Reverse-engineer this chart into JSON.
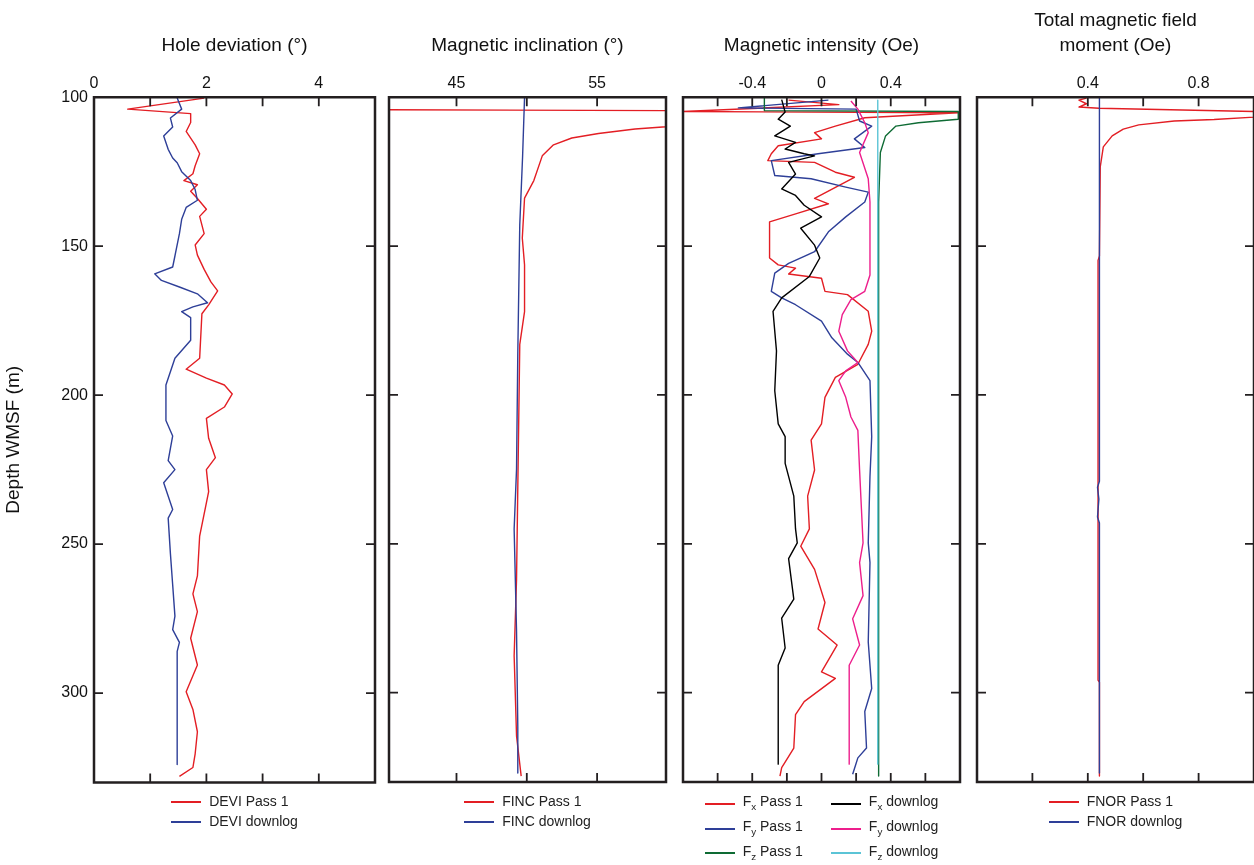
{
  "chart_data": [
    {
      "type": "line",
      "title": "Hole deviation (°)",
      "ylabel": "Depth WMSF (m)",
      "xlim": [
        0,
        5
      ],
      "xticks": [
        0,
        {
          "value": 1,
          "label": null
        },
        2,
        {
          "value": 3,
          "label": null
        },
        4
      ],
      "ylim": [
        330,
        100
      ],
      "yticks": [
        100,
        150,
        200,
        250,
        300
      ],
      "legend": "bottom",
      "series": [
        {
          "name": "DEVI Pass 1",
          "color": "#e31e24",
          "x": [
            1.96,
            0.6,
            1.72,
            1.72,
            1.64,
            1.8,
            1.88,
            1.8,
            1.76,
            1.6,
            1.84,
            1.72,
            1.84,
            2.0,
            1.88,
            1.96,
            1.8,
            1.84,
            1.96,
            2.08,
            2.2,
            2.04,
            1.92,
            1.88,
            1.64,
            2.0,
            2.32,
            2.46,
            2.32,
            2.0,
            2.04,
            2.16,
            2.0,
            2.04,
            1.96,
            1.88,
            1.84,
            1.76,
            1.84,
            1.72,
            1.84,
            1.64,
            1.76,
            1.84,
            1.8,
            1.76,
            1.52
          ],
          "values": [
            100.3,
            104,
            105.5,
            108.5,
            111.5,
            116,
            119,
            123,
            125.7,
            128,
            129.4,
            131.6,
            134,
            137.6,
            140,
            145.8,
            149.6,
            153,
            157.8,
            162,
            165,
            169.7,
            172.7,
            187.6,
            191.3,
            194.3,
            196.6,
            199.6,
            204,
            207.8,
            214.5,
            221,
            225,
            232.4,
            239.9,
            247.3,
            260.7,
            266.7,
            272.7,
            281.6,
            290.6,
            299.6,
            305.5,
            313,
            320.4,
            325,
            328
          ]
        },
        {
          "name": "DEVI downlog",
          "color": "#2e3f98",
          "x": [
            1.48,
            1.56,
            1.36,
            1.4,
            1.24,
            1.32,
            1.4,
            1.48,
            1.56,
            1.72,
            1.8,
            1.84,
            1.64,
            1.56,
            1.52,
            1.44,
            1.4,
            1.08,
            1.2,
            1.52,
            1.84,
            2.02,
            1.76,
            1.56,
            1.72,
            1.72,
            1.44,
            1.28,
            1.28,
            1.4,
            1.32,
            1.44,
            1.24,
            1.4,
            1.32,
            1.36,
            1.4,
            1.44,
            1.4,
            1.52,
            1.48,
            1.48
          ],
          "values": [
            100.3,
            104,
            107,
            110,
            113,
            117.5,
            120.4,
            122,
            125,
            128,
            131,
            134.6,
            137,
            141,
            145.8,
            153.3,
            157,
            159.3,
            161.5,
            163.7,
            166,
            169,
            170.4,
            172,
            174,
            181.6,
            187.6,
            196.6,
            208.5,
            213.7,
            222,
            225,
            229.4,
            238.4,
            241.3,
            253.3,
            263.7,
            274.2,
            278.7,
            283,
            286,
            324
          ]
        }
      ]
    },
    {
      "type": "line",
      "title": "Magnetic inclination (°)",
      "xlim": [
        40.2,
        59.9
      ],
      "xticks": [
        45,
        {
          "value": 50,
          "label": null
        },
        55
      ],
      "ylim": [
        330,
        100
      ],
      "yticks": [
        100,
        150,
        200,
        250,
        300
      ],
      "tick_labels": "x",
      "legend": "bottom",
      "series": [
        {
          "name": "FINC Pass 1",
          "color": "#e31e24",
          "x": [
            40.2,
            59.9,
            59.9,
            57.7,
            55.1,
            53.2,
            51.9,
            51.1,
            50.5,
            49.84,
            49.68,
            49.84,
            49.84,
            49.5,
            49.4,
            49.27,
            49.1,
            49.27,
            49.6
          ],
          "values": [
            104.2,
            104.5,
            109.9,
            110.7,
            112.2,
            113.7,
            116,
            119.7,
            128,
            133.9,
            147.3,
            156.3,
            172,
            183,
            217.5,
            262,
            287.6,
            314.5,
            328
          ]
        },
        {
          "name": "FINC downlog",
          "color": "#2e3f98",
          "x": [
            49.84,
            49.7,
            49.5,
            49.36,
            49.27,
            49.1,
            49.27,
            49.36,
            49.36
          ],
          "values": [
            100,
            120,
            142.8,
            186,
            225,
            245,
            279.4,
            311.5,
            327
          ]
        }
      ]
    },
    {
      "type": "line",
      "title": "Magnetic intensity (Oe)",
      "xlim": [
        -0.8,
        0.8
      ],
      "xticks": [
        {
          "value": -0.6,
          "label": null
        },
        -0.4,
        {
          "value": -0.2,
          "label": null
        },
        0,
        {
          "value": 0.2,
          "label": null
        },
        0.4,
        {
          "value": 0.6,
          "label": null
        }
      ],
      "ylim": [
        330,
        100
      ],
      "yticks": [
        100,
        150,
        200,
        250,
        300
      ],
      "tick_labels": "x",
      "legend": "bottom",
      "series": [
        {
          "name": "F$_{x}$ Pass 1",
          "color": "#e31e24",
          "x": [
            -0.19,
            0.1,
            -0.8,
            0.79,
            0.25,
            0.08,
            -0.04,
            0,
            -0.25,
            -0.29,
            -0.31,
            -0.04,
            0.08,
            0.19,
            -0.04,
            0.04,
            -0.14,
            -0.3,
            -0.3,
            -0.25,
            -0.15,
            -0.19,
            0,
            0.02,
            0.15,
            0.27,
            0.29,
            0.27,
            0.21,
            0.08,
            0.02,
            0,
            -0.06,
            -0.04,
            -0.08,
            -0.07,
            -0.12,
            -0.04,
            0.02,
            -0.02,
            0.09,
            0,
            0.08,
            -0.1,
            -0.15,
            -0.16,
            -0.23,
            -0.24
          ],
          "values": [
            101,
            102.5,
            104.8,
            105.2,
            106.9,
            109.7,
            111.9,
            114,
            116.3,
            119,
            121.3,
            121.9,
            125.2,
            126.9,
            134,
            135.8,
            139,
            141.9,
            154,
            156.3,
            157.4,
            159.4,
            160.8,
            165.2,
            166.3,
            171.9,
            178.6,
            183,
            189.7,
            194.1,
            200.8,
            209.7,
            215.2,
            225.2,
            234,
            245,
            250.8,
            258.6,
            269.7,
            278.6,
            284,
            293,
            295.2,
            303,
            307.4,
            318.6,
            325.2,
            328
          ]
        },
        {
          "name": "F$_{y}$ Pass 1",
          "color": "#2e3f98",
          "x": [
            0.04,
            -0.48,
            0.2,
            0.22,
            0.29,
            0.19,
            0.25,
            -0.02,
            -0.29,
            -0.27,
            -0.06,
            0.14,
            0.27,
            0.25,
            0.14,
            0.04,
            -0.04,
            -0.19,
            -0.27,
            -0.29,
            -0.23,
            -0.15,
            0,
            0.06,
            0.15,
            0.21,
            0.28,
            0.29,
            0.28,
            0.27,
            0.28,
            0.27,
            0.29,
            0.25,
            0.26,
            0.21,
            0.18
          ],
          "values": [
            101,
            103.6,
            104,
            108,
            109.7,
            114,
            116.9,
            119,
            121.3,
            126.3,
            127.4,
            130.2,
            131.9,
            135.2,
            140.2,
            145.2,
            151.9,
            155.8,
            159.1,
            165.2,
            167.4,
            169.7,
            175.2,
            180.8,
            186.3,
            189.1,
            195.2,
            214,
            227.4,
            249.7,
            256.3,
            283,
            298.6,
            306.3,
            318.6,
            321.9,
            327.4
          ]
        },
        {
          "name": "F$_{z}$ Pass 1",
          "color": "#0e6b34",
          "x": [
            -0.33,
            -0.33,
            0.79,
            0.79,
            0.56,
            0.43,
            0.37,
            0.34,
            0.33,
            0.33
          ],
          "values": [
            100,
            104.5,
            104.8,
            107.4,
            108.6,
            109.7,
            113,
            118.6,
            135.2,
            328
          ]
        },
        {
          "name": "F$_{x}$ downlog",
          "color": "#000000",
          "x": [
            -0.23,
            -0.21,
            -0.25,
            -0.18,
            -0.27,
            -0.15,
            -0.21,
            -0.1,
            -0.04,
            -0.19,
            -0.15,
            -0.23,
            -0.15,
            -0.1,
            0,
            -0.12,
            -0.04,
            -0.01,
            -0.07,
            -0.23,
            -0.28,
            -0.26,
            -0.27,
            -0.25,
            -0.21,
            -0.21,
            -0.16,
            -0.15,
            -0.14,
            -0.19,
            -0.16,
            -0.23,
            -0.21,
            -0.25,
            -0.25
          ],
          "values": [
            100.8,
            105,
            107.4,
            109.7,
            113,
            115.2,
            117.4,
            119,
            119.7,
            121.9,
            125.8,
            130.8,
            133,
            136.3,
            140.2,
            144,
            149.7,
            154,
            160.2,
            167.4,
            171.9,
            185.2,
            198.6,
            209.7,
            214,
            223,
            234,
            245,
            249.7,
            255,
            268.6,
            275,
            285,
            290.8,
            324
          ]
        },
        {
          "name": "F$_{y}$ downlog",
          "color": "#ed1e8c",
          "x": [
            0.17,
            0.21,
            0.25,
            0.27,
            0.22,
            0.27,
            0.28,
            0.28,
            0.25,
            0.17,
            0.12,
            0.1,
            0.15,
            0.21,
            0.14,
            0.1,
            0.14,
            0.17,
            0.21,
            0.22,
            0.24,
            0.22,
            0.24,
            0.18,
            0.22,
            0.16,
            0.16
          ],
          "values": [
            101.3,
            104,
            108.6,
            111.9,
            118.6,
            127.4,
            135.2,
            159.7,
            165.2,
            168,
            173,
            178.6,
            185.2,
            189.1,
            191.9,
            195.2,
            200.8,
            207.4,
            211.9,
            225.2,
            249.7,
            256.3,
            267.4,
            275.2,
            284,
            290.8,
            324
          ]
        },
        {
          "name": "F$_{z}$ downlog",
          "color": "#5bc4d6",
          "x": [
            0.325,
            0.325
          ],
          "values": [
            101,
            324
          ]
        }
      ]
    },
    {
      "type": "line",
      "title": "Total magnetic field moment (Oe)",
      "xlim": [
        0,
        1
      ],
      "xticks": [
        {
          "value": 0.2,
          "label": null
        },
        0.4,
        {
          "value": 0.6,
          "label": null
        },
        0.8
      ],
      "ylim": [
        330,
        100
      ],
      "yticks": [
        100,
        150,
        200,
        250,
        300
      ],
      "tick_labels": "x",
      "legend": "bottom",
      "series": [
        {
          "name": "FNOR Pass 1",
          "color": "#e31e24",
          "x": [
            0.395,
            0.368,
            0.395,
            0.368,
            0.44,
            1.0,
            1.0,
            0.856,
            0.712,
            0.584,
            0.528,
            0.488,
            0.456,
            0.445,
            0.442,
            0.437,
            0.437,
            0.442,
            0.442
          ],
          "values": [
            100.3,
            101,
            102.2,
            103.3,
            103.7,
            104.8,
            106.7,
            107.5,
            108,
            109.3,
            110.7,
            113,
            116.7,
            123.4,
            153.3,
            154.8,
            295.8,
            296.5,
            328
          ]
        },
        {
          "name": "FNOR downlog",
          "color": "#2e3f98",
          "x": [
            0.442,
            0.442,
            0.435,
            0.44,
            0.435,
            0.442,
            0.442
          ],
          "values": [
            100,
            229,
            231,
            235,
            241,
            243,
            327
          ]
        }
      ]
    }
  ]
}
